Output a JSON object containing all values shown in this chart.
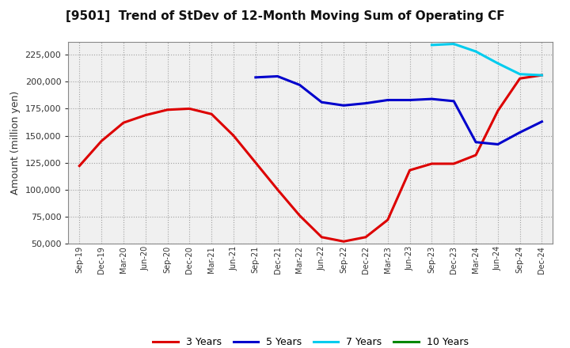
{
  "title": "[9501]  Trend of StDev of 12-Month Moving Sum of Operating CF",
  "ylabel": "Amount (million yen)",
  "background_color": "#ffffff",
  "grid_color": "#999999",
  "plot_bg_color": "#f0f0f0",
  "x_labels": [
    "Sep-19",
    "Dec-19",
    "Mar-20",
    "Jun-20",
    "Sep-20",
    "Dec-20",
    "Mar-21",
    "Jun-21",
    "Sep-21",
    "Dec-21",
    "Mar-22",
    "Jun-22",
    "Sep-22",
    "Dec-22",
    "Mar-23",
    "Jun-23",
    "Sep-23",
    "Dec-23",
    "Mar-24",
    "Jun-24",
    "Sep-24",
    "Dec-24"
  ],
  "series": {
    "3yr": {
      "color": "#dd0000",
      "label": "3 Years",
      "x": [
        0,
        1,
        2,
        3,
        4,
        5,
        6,
        7,
        8,
        9,
        10,
        11,
        12,
        13,
        14,
        15,
        16,
        17,
        18,
        19,
        20,
        21
      ],
      "y": [
        122000,
        145000,
        162000,
        169000,
        174000,
        175000,
        170000,
        150000,
        125000,
        100000,
        76000,
        56000,
        52000,
        56000,
        72000,
        118000,
        124000,
        124000,
        132000,
        173000,
        203000,
        206000
      ]
    },
    "5yr": {
      "color": "#0000cc",
      "label": "5 Years",
      "x": [
        8,
        9,
        10,
        11,
        12,
        13,
        14,
        15,
        16,
        17,
        18,
        19,
        20,
        21
      ],
      "y": [
        204000,
        205000,
        197000,
        181000,
        178000,
        180000,
        183000,
        183000,
        184000,
        182000,
        144000,
        142000,
        153000,
        163000
      ]
    },
    "7yr": {
      "color": "#00ccee",
      "label": "7 Years",
      "x": [
        16,
        17,
        18,
        19,
        20,
        21
      ],
      "y": [
        234000,
        235000,
        228000,
        217000,
        207000,
        206000
      ]
    },
    "10yr": {
      "color": "#008800",
      "label": "10 Years",
      "x": [],
      "y": []
    }
  },
  "ylim": [
    50000,
    237000
  ],
  "yticks": [
    50000,
    75000,
    100000,
    125000,
    150000,
    175000,
    200000,
    225000
  ],
  "linewidth": 2.2
}
